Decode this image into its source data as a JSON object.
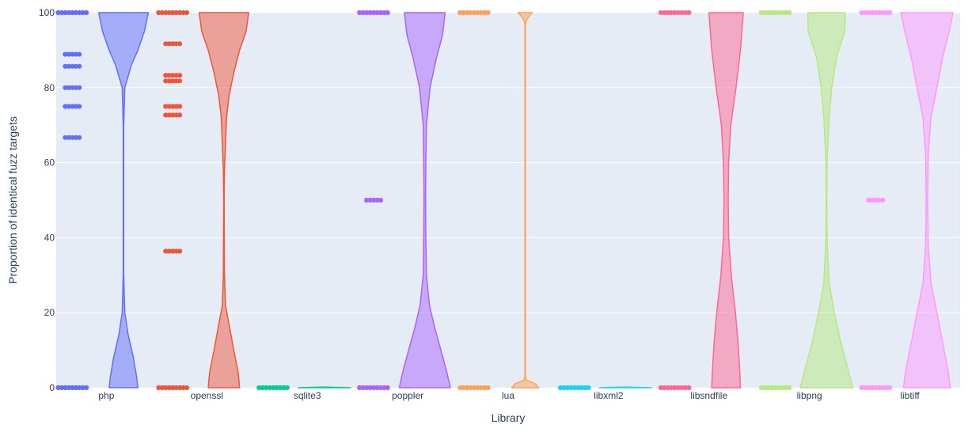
{
  "chart_data": {
    "type": "violin",
    "xlabel": "Library",
    "ylabel": "Proportion of identical fuzz targets",
    "ylim": [
      0,
      100
    ],
    "yticks": [
      0,
      20,
      40,
      60,
      80,
      100
    ],
    "grid": true,
    "legend": "none",
    "categories": [
      "php",
      "openssl",
      "sqlite3",
      "poppler",
      "lua",
      "libxml2",
      "libsndfile",
      "libpng",
      "libtiff"
    ],
    "series": [
      {
        "category": "php",
        "color": "#636efa",
        "points": [
          100,
          0,
          88.9,
          85.7,
          80,
          75,
          66.7
        ],
        "density": [
          [
            0,
            0.55
          ],
          [
            3,
            0.5
          ],
          [
            8,
            0.38
          ],
          [
            14,
            0.18
          ],
          [
            20,
            0.05
          ],
          [
            30,
            0.01
          ],
          [
            50,
            0.01
          ],
          [
            70,
            0.01
          ],
          [
            80,
            0.05
          ],
          [
            86,
            0.3
          ],
          [
            90,
            0.55
          ],
          [
            95,
            0.8
          ],
          [
            100,
            0.95
          ]
        ]
      },
      {
        "category": "openssl",
        "color": "#ef553b",
        "points": [
          100,
          0,
          91.7,
          83.3,
          81.8,
          75,
          72.7,
          36.4
        ],
        "density": [
          [
            0,
            0.6
          ],
          [
            4,
            0.55
          ],
          [
            10,
            0.38
          ],
          [
            16,
            0.22
          ],
          [
            22,
            0.06
          ],
          [
            30,
            0.02
          ],
          [
            50,
            0.01
          ],
          [
            58,
            0.02
          ],
          [
            65,
            0.06
          ],
          [
            72,
            0.1
          ],
          [
            78,
            0.2
          ],
          [
            84,
            0.38
          ],
          [
            90,
            0.6
          ],
          [
            95,
            0.85
          ],
          [
            100,
            0.95
          ]
        ]
      },
      {
        "category": "sqlite3",
        "color": "#00cc96",
        "points": [
          0
        ],
        "density": [
          [
            0,
            1
          ],
          [
            0.2,
            0
          ]
        ]
      },
      {
        "category": "poppler",
        "color": "#ab63fa",
        "points": [
          100,
          50,
          0
        ],
        "density": [
          [
            0,
            0.98
          ],
          [
            4,
            0.85
          ],
          [
            10,
            0.62
          ],
          [
            16,
            0.38
          ],
          [
            22,
            0.18
          ],
          [
            30,
            0.06
          ],
          [
            40,
            0.04
          ],
          [
            50,
            0.03
          ],
          [
            60,
            0.04
          ],
          [
            70,
            0.06
          ],
          [
            80,
            0.2
          ],
          [
            88,
            0.45
          ],
          [
            94,
            0.68
          ],
          [
            100,
            0.78
          ]
        ]
      },
      {
        "category": "lua",
        "color": "#ffa15a",
        "points": [
          100,
          0
        ],
        "density": [
          [
            0,
            0.52
          ],
          [
            1,
            0.4
          ],
          [
            2,
            0.05
          ],
          [
            3,
            0.01
          ],
          [
            50,
            0.01
          ],
          [
            97,
            0.01
          ],
          [
            98,
            0.05
          ],
          [
            99.5,
            0.2
          ],
          [
            100,
            0.28
          ]
        ]
      },
      {
        "category": "libxml2",
        "color": "#19d3f3",
        "points": [
          0
        ],
        "density": [
          [
            0,
            1
          ],
          [
            0.2,
            0
          ]
        ]
      },
      {
        "category": "libsndfile",
        "color": "#ff6692",
        "points": [
          100,
          0
        ],
        "density": [
          [
            0,
            0.55
          ],
          [
            5,
            0.52
          ],
          [
            12,
            0.46
          ],
          [
            20,
            0.36
          ],
          [
            30,
            0.2
          ],
          [
            40,
            0.1
          ],
          [
            50,
            0.08
          ],
          [
            60,
            0.1
          ],
          [
            70,
            0.18
          ],
          [
            80,
            0.38
          ],
          [
            90,
            0.55
          ],
          [
            100,
            0.66
          ]
        ]
      },
      {
        "category": "libpng",
        "color": "#b6e880",
        "points": [
          100,
          0
        ],
        "density": [
          [
            0,
            1
          ],
          [
            5,
            0.82
          ],
          [
            12,
            0.55
          ],
          [
            20,
            0.3
          ],
          [
            28,
            0.1
          ],
          [
            40,
            0.02
          ],
          [
            50,
            0.01
          ],
          [
            60,
            0.02
          ],
          [
            72,
            0.1
          ],
          [
            80,
            0.2
          ],
          [
            88,
            0.38
          ],
          [
            95,
            0.7
          ],
          [
            100,
            0.72
          ]
        ]
      },
      {
        "category": "libtiff",
        "color": "#ff97ff",
        "points": [
          100,
          50,
          0
        ],
        "density": [
          [
            0,
            0.9
          ],
          [
            5,
            0.8
          ],
          [
            12,
            0.6
          ],
          [
            20,
            0.38
          ],
          [
            28,
            0.15
          ],
          [
            38,
            0.05
          ],
          [
            50,
            0.03
          ],
          [
            62,
            0.05
          ],
          [
            72,
            0.15
          ],
          [
            80,
            0.38
          ],
          [
            88,
            0.6
          ],
          [
            95,
            0.85
          ],
          [
            100,
            1
          ]
        ]
      }
    ]
  }
}
